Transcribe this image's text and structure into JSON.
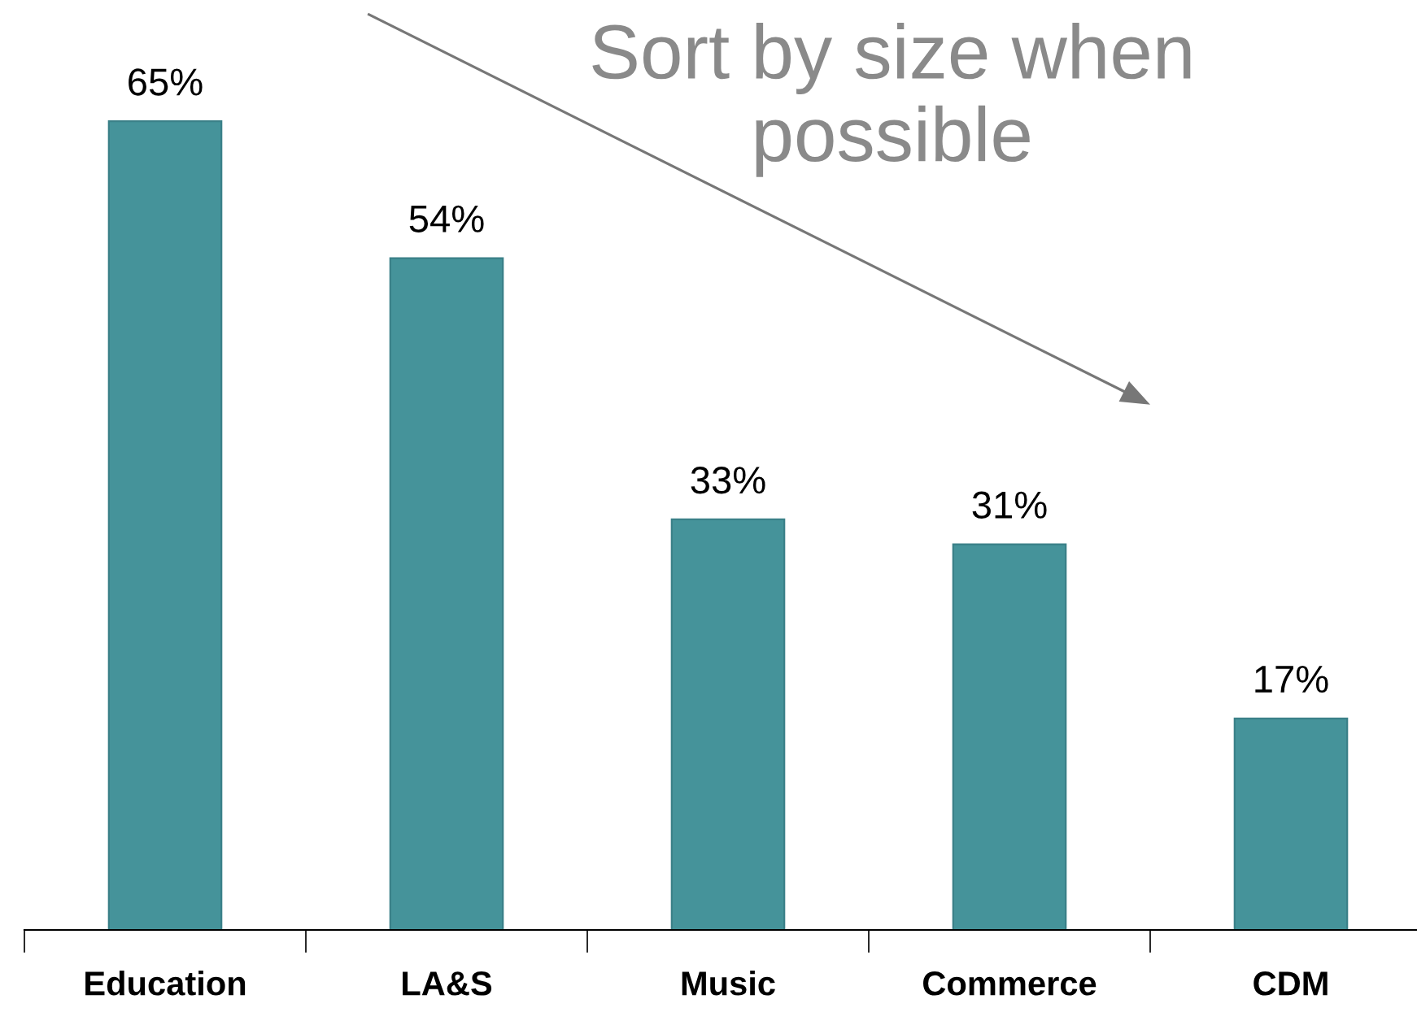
{
  "chart_data": {
    "type": "bar",
    "categories": [
      "Education",
      "LA&S",
      "Music",
      "Commerce",
      "CDM"
    ],
    "values": [
      65,
      54,
      33,
      31,
      17
    ],
    "value_labels": [
      "65%",
      "54%",
      "33%",
      "31%",
      "17%"
    ],
    "color": "#45939a",
    "grid": false,
    "legend": false,
    "annotations": [
      "Sort by size when possible"
    ]
  }
}
